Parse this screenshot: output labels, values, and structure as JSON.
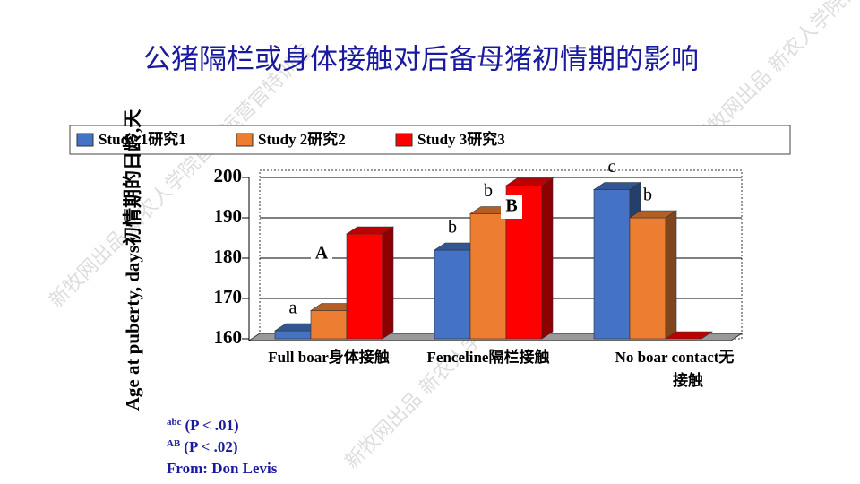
{
  "title": "公猪隔栏或身体接触对后备母猪初情期的影响",
  "watermark": "新牧网出品 新农人学院首席运营官特训营",
  "chart_data": {
    "type": "bar3d",
    "y_label": "Age at puberty, days初情期的日龄,天",
    "categories": [
      "Full boar身体接触",
      "Fenceline隔栏接触",
      "No boar contact无接触"
    ],
    "series": [
      {
        "name": "Study 1研究1",
        "color": "#4472c4",
        "values": [
          162,
          182,
          197
        ],
        "letters": [
          "a",
          "b",
          "c"
        ]
      },
      {
        "name": "Study 2研究2",
        "color": "#ed7d31",
        "values": [
          167,
          191,
          190
        ],
        "letters": [
          null,
          "b",
          "b"
        ]
      },
      {
        "name": "Study 3研究3",
        "color": "#ff0000",
        "values": [
          186,
          198,
          160
        ],
        "letters": [
          "A",
          "B",
          null
        ]
      }
    ],
    "ylim": [
      160,
      200
    ],
    "yticks": [
      160,
      170,
      180,
      190,
      200
    ],
    "grid": true
  },
  "notes": [
    {
      "sup": "abc",
      "text": "(P < .01)"
    },
    {
      "sup": "AB",
      "text": "(P < .02)"
    },
    {
      "text": "From: Don Levis"
    }
  ]
}
